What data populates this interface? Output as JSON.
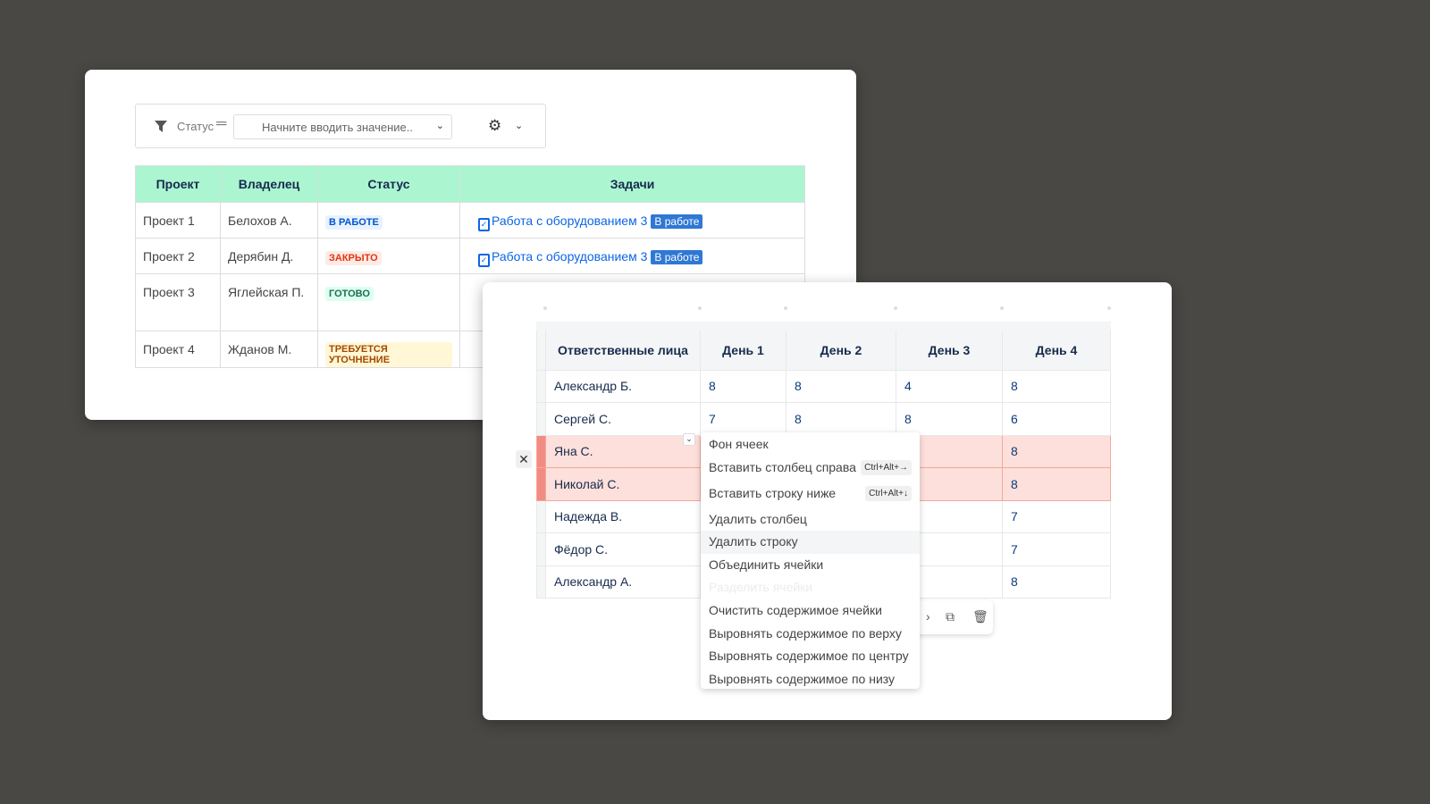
{
  "filter": {
    "label": "Статус",
    "operator": "=",
    "placeholder": "Начните вводить значение..",
    "icon": "filter-icon",
    "settings_icon": "gear-icon"
  },
  "projects": {
    "headers": [
      "Проект",
      "Владелец",
      "Статус",
      "Задачи"
    ],
    "rows": [
      {
        "project": "Проект 1",
        "owner": "Белохов А.",
        "status": "В РАБОТЕ",
        "status_color": "#0055cc",
        "status_bg": "#e9f2ff",
        "task": "Работа с оборудованием 3",
        "task_status": "В работе"
      },
      {
        "project": "Проект 2",
        "owner": "Дерябин Д.",
        "status": "ЗАКРЫТО",
        "status_color": "#e2350f",
        "status_bg": "#ffebe6",
        "task": "Работа с оборудованием 3",
        "task_status": "В работе"
      },
      {
        "project": "Проект 3",
        "owner": "Яглейская П.",
        "status": "ГОТОВО",
        "status_color": "#216e4e",
        "status_bg": "#dcfff1",
        "task": "",
        "task_status": ""
      },
      {
        "project": "Проект 4",
        "owner": "Жданов М.",
        "status": "ТРЕБУЕТСЯ УТОЧНЕНИЕ",
        "status_color": "#a54800",
        "status_bg": "#fff7d6",
        "task": "",
        "task_status": ""
      }
    ]
  },
  "schedule": {
    "headers": [
      "Ответственные лица",
      "День 1",
      "День 2",
      "День 3",
      "День 4"
    ],
    "rows": [
      {
        "name": "Александр Б.",
        "d": [
          "8",
          "8",
          "4",
          "8"
        ]
      },
      {
        "name": "Сергей С.",
        "d": [
          "7",
          "8",
          "8",
          "6"
        ]
      },
      {
        "name": "Яна С.",
        "d": [
          "",
          "",
          "",
          "8"
        ],
        "selected": true
      },
      {
        "name": "Николай С.",
        "d": [
          "",
          "",
          "",
          "8"
        ],
        "selected": true
      },
      {
        "name": "Надежда В.",
        "d": [
          "",
          "",
          "",
          "7"
        ]
      },
      {
        "name": "Фёдор С.",
        "d": [
          "",
          "",
          "",
          "7"
        ]
      },
      {
        "name": "Александр А.",
        "d": [
          "",
          "",
          "",
          "8"
        ]
      }
    ]
  },
  "context_menu": {
    "items": [
      {
        "label": "Фон ячеек"
      },
      {
        "label": "Вставить столбец справа",
        "shortcut": "Ctrl+Alt+→"
      },
      {
        "label": "Вставить строку ниже",
        "shortcut": "Ctrl+Alt+↓"
      },
      {
        "label": "Удалить столбец"
      },
      {
        "label": "Удалить строку",
        "highlighted": true
      },
      {
        "label": "Объединить ячейки"
      },
      {
        "label": "Разделить ячейки",
        "disabled": true
      },
      {
        "label": "Очистить содержимое ячейки"
      },
      {
        "label": "Выровнять содержимое по верху"
      },
      {
        "label": "Выровнять содержимое по центру"
      },
      {
        "label": "Выровнять содержимое по низу"
      }
    ]
  }
}
